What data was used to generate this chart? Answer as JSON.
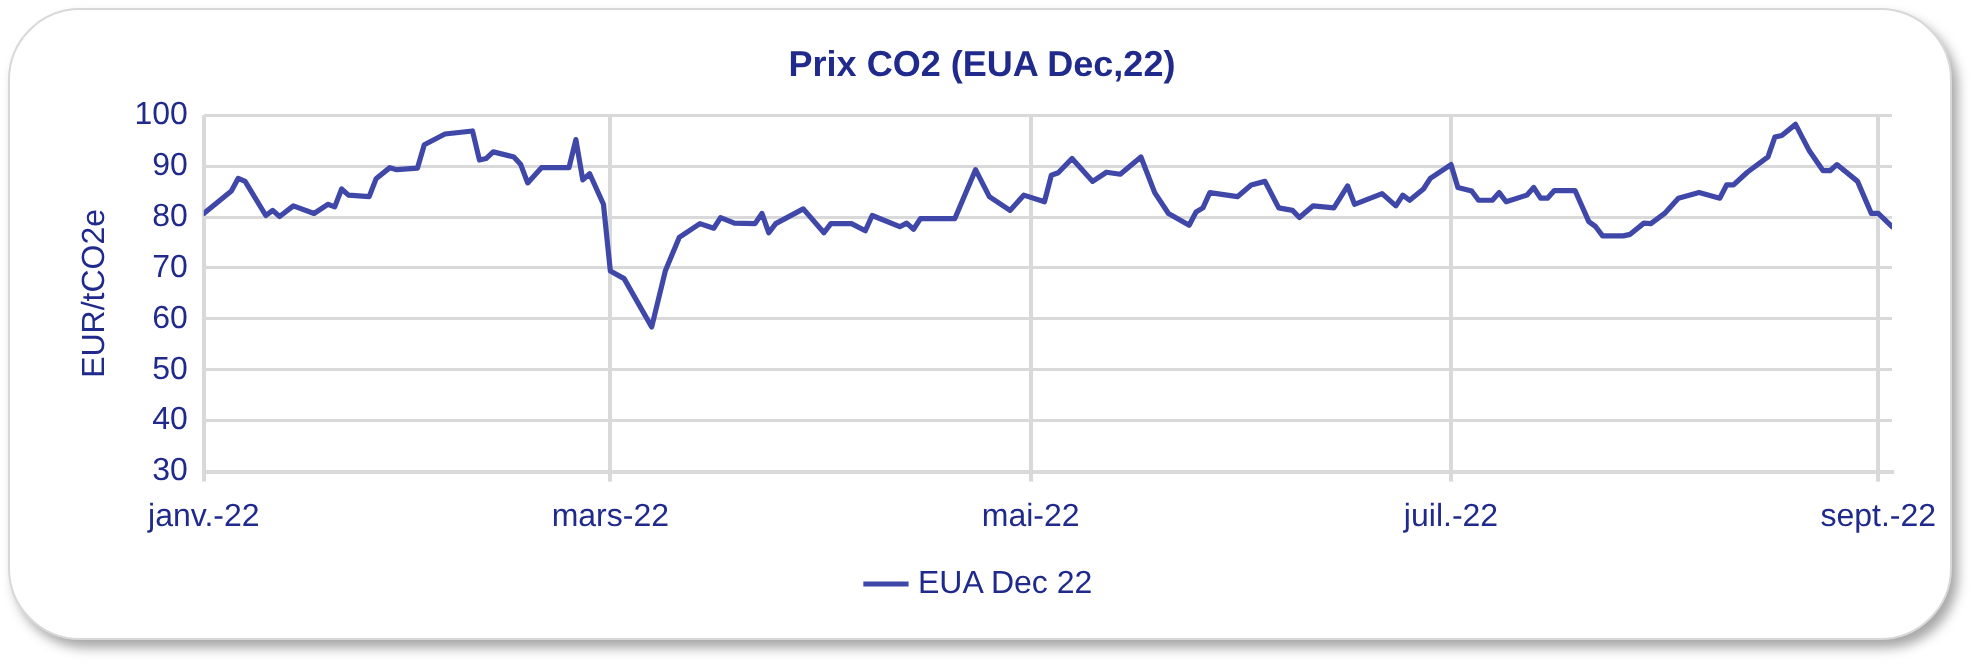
{
  "chart_data": {
    "type": "line",
    "title": "Prix CO2 (EUA Dec,22)",
    "ylabel": "EUR/tCO2e",
    "x": [
      "2022-01-01",
      "2022-01-05",
      "2022-01-06",
      "2022-01-07",
      "2022-01-10",
      "2022-01-11",
      "2022-01-12",
      "2022-01-14",
      "2022-01-17",
      "2022-01-19",
      "2022-01-20",
      "2022-01-21",
      "2022-01-22",
      "2022-01-25",
      "2022-01-26",
      "2022-01-28",
      "2022-01-29",
      "2022-02-01",
      "2022-02-02",
      "2022-02-05",
      "2022-02-09",
      "2022-02-10",
      "2022-02-11",
      "2022-02-12",
      "2022-02-15",
      "2022-02-16",
      "2022-02-17",
      "2022-02-19",
      "2022-02-23",
      "2022-02-24",
      "2022-02-25",
      "2022-02-26",
      "2022-02-28",
      "2022-03-01",
      "2022-03-03",
      "2022-03-07",
      "2022-03-09",
      "2022-03-11",
      "2022-03-14",
      "2022-03-16",
      "2022-03-17",
      "2022-03-19",
      "2022-03-22",
      "2022-03-23",
      "2022-03-24",
      "2022-03-25",
      "2022-03-29",
      "2022-04-01",
      "2022-04-02",
      "2022-04-05",
      "2022-04-07",
      "2022-04-08",
      "2022-04-12",
      "2022-04-13",
      "2022-04-14",
      "2022-04-15",
      "2022-04-20",
      "2022-04-23",
      "2022-04-25",
      "2022-04-28",
      "2022-04-30",
      "2022-05-03",
      "2022-05-04",
      "2022-05-05",
      "2022-05-07",
      "2022-05-10",
      "2022-05-12",
      "2022-05-14",
      "2022-05-17",
      "2022-05-19",
      "2022-05-21",
      "2022-05-24",
      "2022-05-25",
      "2022-05-26",
      "2022-05-27",
      "2022-05-31",
      "2022-06-02",
      "2022-06-04",
      "2022-06-06",
      "2022-06-08",
      "2022-06-09",
      "2022-06-11",
      "2022-06-14",
      "2022-06-16",
      "2022-06-17",
      "2022-06-21",
      "2022-06-23",
      "2022-06-24",
      "2022-06-25",
      "2022-06-27",
      "2022-06-28",
      "2022-07-01",
      "2022-07-02",
      "2022-07-04",
      "2022-07-05",
      "2022-07-07",
      "2022-07-08",
      "2022-07-09",
      "2022-07-12",
      "2022-07-13",
      "2022-07-14",
      "2022-07-15",
      "2022-07-16",
      "2022-07-19",
      "2022-07-21",
      "2022-07-22",
      "2022-07-23",
      "2022-07-26",
      "2022-07-27",
      "2022-07-29",
      "2022-07-30",
      "2022-08-01",
      "2022-08-03",
      "2022-08-06",
      "2022-08-09",
      "2022-08-10",
      "2022-08-11",
      "2022-08-13",
      "2022-08-16",
      "2022-08-17",
      "2022-08-18",
      "2022-08-20",
      "2022-08-22",
      "2022-08-24",
      "2022-08-25",
      "2022-08-26",
      "2022-08-29",
      "2022-08-31",
      "2022-09-01",
      "2022-09-03"
    ],
    "series": [
      {
        "name": "EUA Dec 22",
        "color": "#3f48a8",
        "values": [
          80.7,
          85.1,
          87.6,
          87.0,
          80.3,
          81.3,
          80.1,
          82.2,
          80.7,
          82.5,
          82.0,
          85.5,
          84.3,
          84.0,
          87.5,
          89.7,
          89.3,
          89.6,
          94.2,
          96.3,
          96.9,
          91.2,
          91.5,
          92.8,
          91.8,
          90.3,
          86.7,
          89.7,
          89.7,
          95.2,
          87.3,
          88.5,
          82.5,
          69.4,
          67.9,
          58.4,
          69.5,
          76.0,
          78.7,
          77.8,
          79.9,
          78.8,
          78.7,
          80.7,
          76.9,
          78.7,
          81.6,
          76.9,
          78.7,
          78.7,
          77.3,
          80.3,
          78.1,
          78.8,
          77.6,
          79.7,
          79.7,
          89.3,
          84.0,
          81.3,
          84.3,
          83.0,
          88.2,
          88.7,
          91.5,
          87.0,
          88.8,
          88.4,
          91.8,
          84.8,
          80.7,
          78.4,
          81.0,
          81.8,
          84.8,
          84.0,
          86.3,
          87.0,
          81.8,
          81.3,
          79.9,
          82.2,
          81.8,
          86.1,
          82.5,
          84.6,
          82.2,
          84.3,
          83.3,
          85.5,
          87.6,
          90.3,
          85.8,
          85.1,
          83.3,
          83.3,
          84.8,
          83.0,
          84.3,
          85.8,
          83.7,
          83.7,
          85.2,
          85.2,
          79.1,
          78.1,
          76.3,
          76.3,
          76.6,
          78.8,
          78.7,
          80.7,
          83.7,
          84.8,
          83.7,
          86.3,
          86.3,
          88.8,
          91.8,
          95.7,
          96.0,
          98.2,
          93.0,
          89.1,
          89.1,
          90.3,
          87.0,
          80.7,
          80.7,
          78.1
        ]
      }
    ],
    "xlim": [
      "2022-01-01",
      "2022-09-03"
    ],
    "xticks": [
      {
        "value": "2022-01-01",
        "label": "janv.-22"
      },
      {
        "value": "2022-03-01",
        "label": "mars-22"
      },
      {
        "value": "2022-05-01",
        "label": "mai-22"
      },
      {
        "value": "2022-07-01",
        "label": "juil.-22"
      },
      {
        "value": "2022-09-01",
        "label": "sept.-22"
      }
    ],
    "ylim": [
      30,
      100
    ],
    "yticks": [
      30,
      40,
      50,
      60,
      70,
      80,
      90,
      100
    ],
    "grid": true,
    "legend": "bottom",
    "marker": "none",
    "line_style": "solid"
  }
}
